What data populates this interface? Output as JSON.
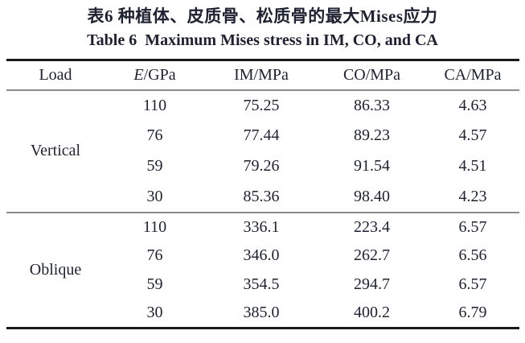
{
  "page": {
    "title_zh": "表6 种植体、皮质骨、松质骨的最大Mises应力",
    "title_en": "Table 6  Maximum Mises stress in IM, CO, and CA"
  },
  "table": {
    "headers": {
      "load": "Load",
      "e_symbol": "E",
      "e_unit": "/GPa",
      "im": "IM/MPa",
      "co": "CO/MPa",
      "ca": "CA/MPa"
    },
    "sections": [
      {
        "load": "Vertical",
        "rows": [
          [
            "110",
            "75.25",
            "86.33",
            "4.63"
          ],
          [
            "76",
            "77.44",
            "89.23",
            "4.57"
          ],
          [
            "59",
            "79.26",
            "91.54",
            "4.51"
          ],
          [
            "30",
            "85.36",
            "98.40",
            "4.23"
          ]
        ]
      },
      {
        "load": "Oblique",
        "rows": [
          [
            "110",
            "336.1",
            "223.4",
            "6.57"
          ],
          [
            "76",
            "346.0",
            "262.7",
            "6.56"
          ],
          [
            "59",
            "354.5",
            "294.7",
            "6.57"
          ],
          [
            "30",
            "385.0",
            "400.2",
            "6.79"
          ]
        ]
      }
    ]
  },
  "colors": {
    "background": "#ffffff",
    "text": "#1d2130",
    "rule_heavy": "#1a1a1a",
    "rule_light": "#8c8c8c"
  }
}
